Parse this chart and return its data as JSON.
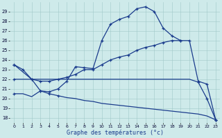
{
  "background_color": "#ceeaea",
  "line_color": "#1a3b8c",
  "xlabel": "Graphe des températures (°c)",
  "ylim": [
    17.5,
    30.0
  ],
  "xlim": [
    -0.5,
    23.5
  ],
  "yticks": [
    18,
    19,
    20,
    21,
    22,
    23,
    24,
    25,
    26,
    27,
    28,
    29
  ],
  "xticks": [
    0,
    1,
    2,
    3,
    4,
    5,
    6,
    7,
    8,
    9,
    10,
    11,
    12,
    13,
    14,
    15,
    16,
    17,
    18,
    19,
    20,
    21,
    22,
    23
  ],
  "curve1_x": [
    0,
    1,
    2,
    3,
    4,
    5,
    6,
    7,
    8,
    9,
    10,
    11,
    12,
    13,
    14,
    15,
    16,
    17,
    18,
    19
  ],
  "curve1_y": [
    23.5,
    23.0,
    22.0,
    20.8,
    20.7,
    21.0,
    21.8,
    23.3,
    23.2,
    23.1,
    26.0,
    27.7,
    28.2,
    28.5,
    29.3,
    29.5,
    29.0,
    27.3,
    26.5,
    26.0
  ],
  "curve2_x": [
    0,
    2,
    3,
    4,
    5,
    6,
    7,
    8,
    9,
    10,
    11,
    12,
    13,
    14,
    15,
    16,
    17,
    18,
    19,
    20,
    21,
    22,
    23
  ],
  "curve2_y": [
    23.5,
    22.0,
    21.8,
    21.8,
    22.0,
    22.2,
    22.5,
    23.0,
    23.0,
    23.5,
    24.0,
    24.3,
    24.5,
    25.0,
    25.3,
    25.5,
    25.8,
    26.0,
    26.0,
    26.0,
    21.8,
    21.5,
    17.8
  ],
  "curve3_x": [
    0,
    2,
    3,
    4,
    5,
    6,
    7,
    8,
    9,
    10,
    11,
    12,
    13,
    14,
    15,
    16,
    17,
    18,
    19,
    20,
    21,
    22,
    23
  ],
  "curve3_y": [
    22.0,
    22.0,
    22.0,
    22.0,
    22.0,
    22.0,
    22.0,
    22.0,
    22.0,
    22.0,
    22.0,
    22.0,
    22.0,
    22.0,
    22.0,
    22.0,
    22.0,
    22.0,
    22.0,
    22.0,
    21.7,
    20.0,
    17.8
  ],
  "curve4_x": [
    0,
    1,
    2,
    3,
    4,
    5,
    6,
    7,
    8,
    9,
    10,
    11,
    12,
    13,
    14,
    15,
    16,
    17,
    18,
    19,
    20,
    21,
    22,
    23
  ],
  "curve4_y": [
    20.5,
    20.5,
    20.2,
    20.8,
    20.5,
    20.3,
    20.1,
    20.0,
    19.8,
    19.7,
    19.5,
    19.4,
    19.3,
    19.2,
    19.1,
    19.0,
    18.9,
    18.8,
    18.7,
    18.6,
    18.5,
    18.4,
    18.2,
    17.8
  ]
}
